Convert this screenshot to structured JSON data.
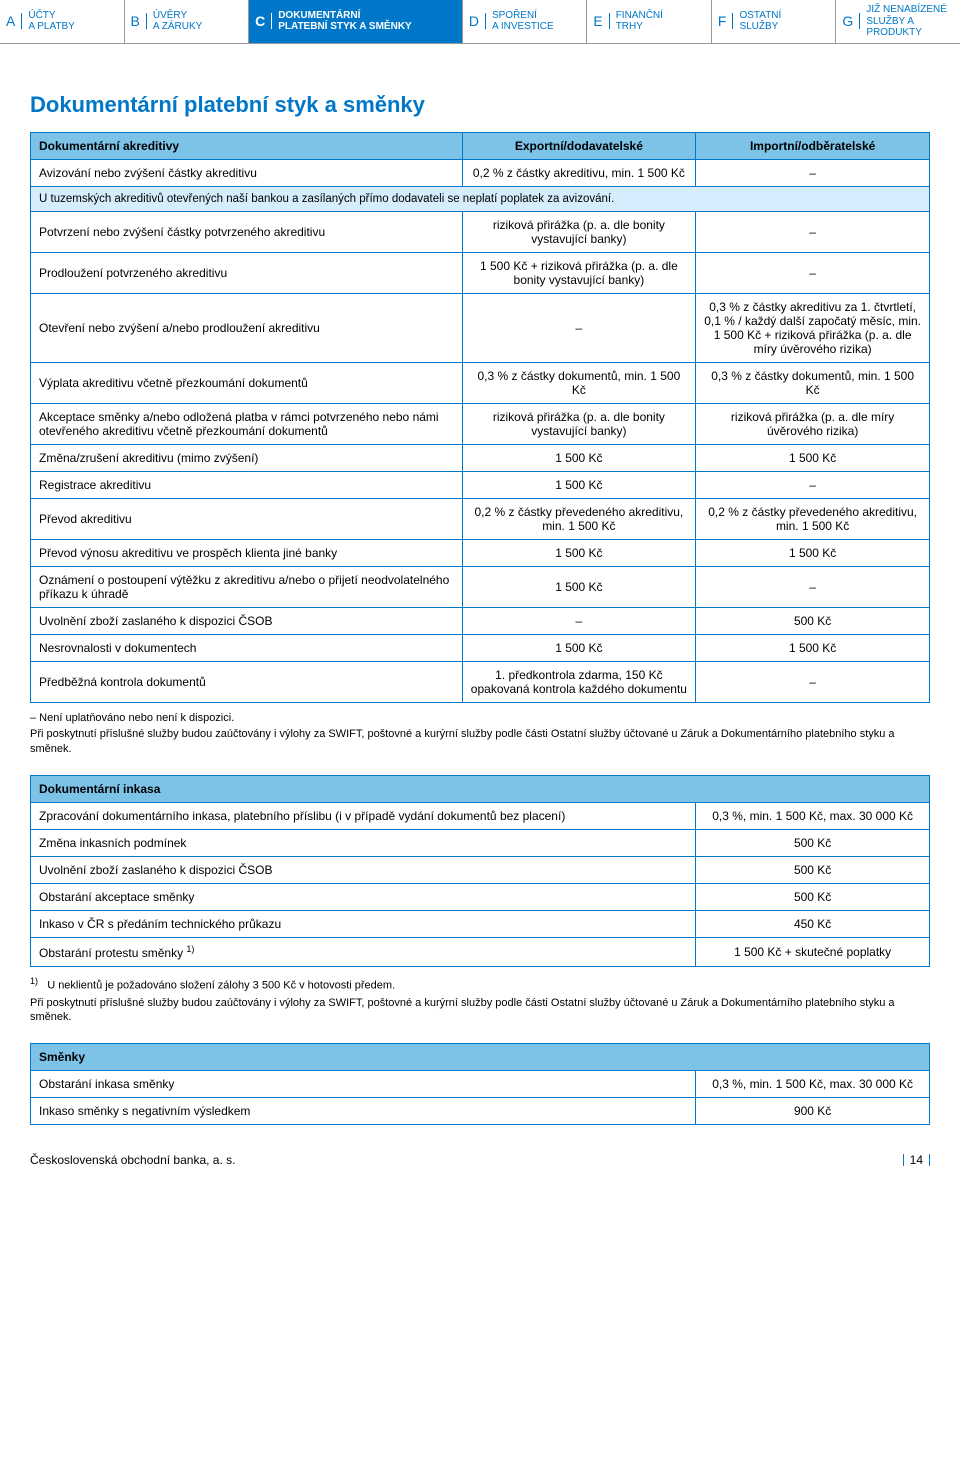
{
  "tabs": [
    {
      "letter": "A",
      "label": "ÚČTY\nA PLATBY",
      "active": false
    },
    {
      "letter": "B",
      "label": "ÚVĚRY\nA ZÁRUKY",
      "active": false
    },
    {
      "letter": "C",
      "label": "DOKUMENTÁRNÍ\nPLATEBNÍ STYK A SMĚNKY",
      "active": true
    },
    {
      "letter": "D",
      "label": "SPOŘENÍ\nA INVESTICE",
      "active": false
    },
    {
      "letter": "E",
      "label": "FINANČNÍ\nTRHY",
      "active": false
    },
    {
      "letter": "F",
      "label": "OSTATNÍ\nSLUŽBY",
      "active": false
    },
    {
      "letter": "G",
      "label": "JIŽ NENABÍZENÉ\nSLUŽBY A PRODUKTY",
      "active": false
    }
  ],
  "page_title": "Dokumentární platební styk a směnky",
  "table1": {
    "header": [
      "Dokumentární akreditivy",
      "Exportní/dodavatelské",
      "Importní/odběratelské"
    ],
    "row1": [
      "Avizování nebo zvýšení částky akreditivu",
      "0,2 % z částky akreditivu, min. 1 500 Kč",
      "–"
    ],
    "note": "U tuzemských akreditivů otevřených naší bankou a zasílaných přímo dodavateli se neplatí poplatek za avizování.",
    "rows": [
      [
        "Potvrzení nebo zvýšení částky potvrzeného akreditivu",
        "riziková přirážka (p. a. dle bonity vystavující banky)",
        "–"
      ],
      [
        "Prodloužení potvrzeného akreditivu",
        "1 500 Kč + riziková přirážka (p. a. dle bonity vystavující banky)",
        "–"
      ],
      [
        "Otevření nebo zvýšení a/nebo prodloužení akreditivu",
        "–",
        "0,3 % z částky akreditivu za 1. čtvrtletí, 0,1 % / každý další započatý měsíc, min. 1 500 Kč + riziková přirážka (p. a. dle míry úvěrového rizika)"
      ],
      [
        "Výplata akreditivu včetně přezkoumání dokumentů",
        "0,3 % z částky dokumentů, min. 1 500 Kč",
        "0,3 % z částky dokumentů, min. 1 500 Kč"
      ],
      [
        "Akceptace směnky a/nebo odložená platba v rámci potvrzeného nebo námi otevřeného akreditivu včetně přezkoumání dokumentů",
        "riziková přirážka (p. a. dle bonity vystavující banky)",
        "riziková přirážka (p. a. dle míry úvěrového rizika)"
      ],
      [
        "Změna/zrušení akreditivu (mimo zvýšení)",
        "1 500 Kč",
        "1 500 Kč"
      ],
      [
        "Registrace akreditivu",
        "1 500 Kč",
        "–"
      ],
      [
        "Převod akreditivu",
        "0,2 % z částky převedeného akreditivu, min. 1 500 Kč",
        "0,2 % z částky převedeného akreditivu, min. 1 500 Kč"
      ],
      [
        "Převod výnosu akreditivu ve prospěch klienta jiné banky",
        "1 500 Kč",
        "1 500 Kč"
      ],
      [
        "Oznámení o postoupení výtěžku z akreditivu a/nebo o přijetí neodvolatelného příkazu k úhradě",
        "1 500 Kč",
        "–"
      ],
      [
        "Uvolnění zboží zaslaného k dispozici ČSOB",
        "–",
        "500 Kč"
      ],
      [
        "Nesrovnalosti v dokumentech",
        "1 500 Kč",
        "1 500 Kč"
      ],
      [
        "Předběžná kontrola dokumentů",
        "1. předkontrola zdarma, 150 Kč opakovaná kontrola každého dokumentu",
        "–"
      ]
    ]
  },
  "footnote1_dash": "–    Není uplatňováno nebo není k dispozici.",
  "footnote1_body": "Při poskytnutí příslušné služby budou zaúčtovány i výlohy za SWIFT, poštovné a kurýrní služby podle části Ostatní služby účtované u Záruk a Dokumentárního platebního styku a směnek.",
  "table2": {
    "header": "Dokumentární inkasa",
    "rows": [
      [
        "Zpracování dokumentárního inkasa, platebního příslibu (i v případě vydání dokumentů bez placení)",
        "0,3 %, min. 1 500 Kč, max. 30 000 Kč"
      ],
      [
        "Změna inkasních podmínek",
        "500 Kč"
      ],
      [
        "Uvolnění zboží zaslaného k dispozici ČSOB",
        "500 Kč"
      ],
      [
        "Obstarání akceptace směnky",
        "500 Kč"
      ],
      [
        "Inkaso v ČR s předáním technického průkazu",
        "450 Kč"
      ],
      [
        "Obstarání protestu směnky ",
        "1 500 Kč + skutečné poplatky"
      ]
    ],
    "sup_mark": "1)"
  },
  "footnote2_sup": "1)",
  "footnote2_line1": "U neklientů je požadováno složení zálohy 3 500 Kč v hotovosti předem.",
  "footnote2_body": "Při poskytnutí příslušné služby budou zaúčtovány i výlohy za SWIFT, poštovné a kurýrní služby podle části Ostatní služby účtované u Záruk a Dokumentárního platebního styku a směnek.",
  "table3": {
    "header": "Směnky",
    "rows": [
      [
        "Obstarání inkasa směnky",
        "0,3 %, min. 1 500 Kč, max. 30 000 Kč"
      ],
      [
        "Inkaso směnky s negativním výsledkem",
        "900 Kč"
      ]
    ]
  },
  "footer_company": "Československá obchodní banka, a. s.",
  "footer_page": "14"
}
